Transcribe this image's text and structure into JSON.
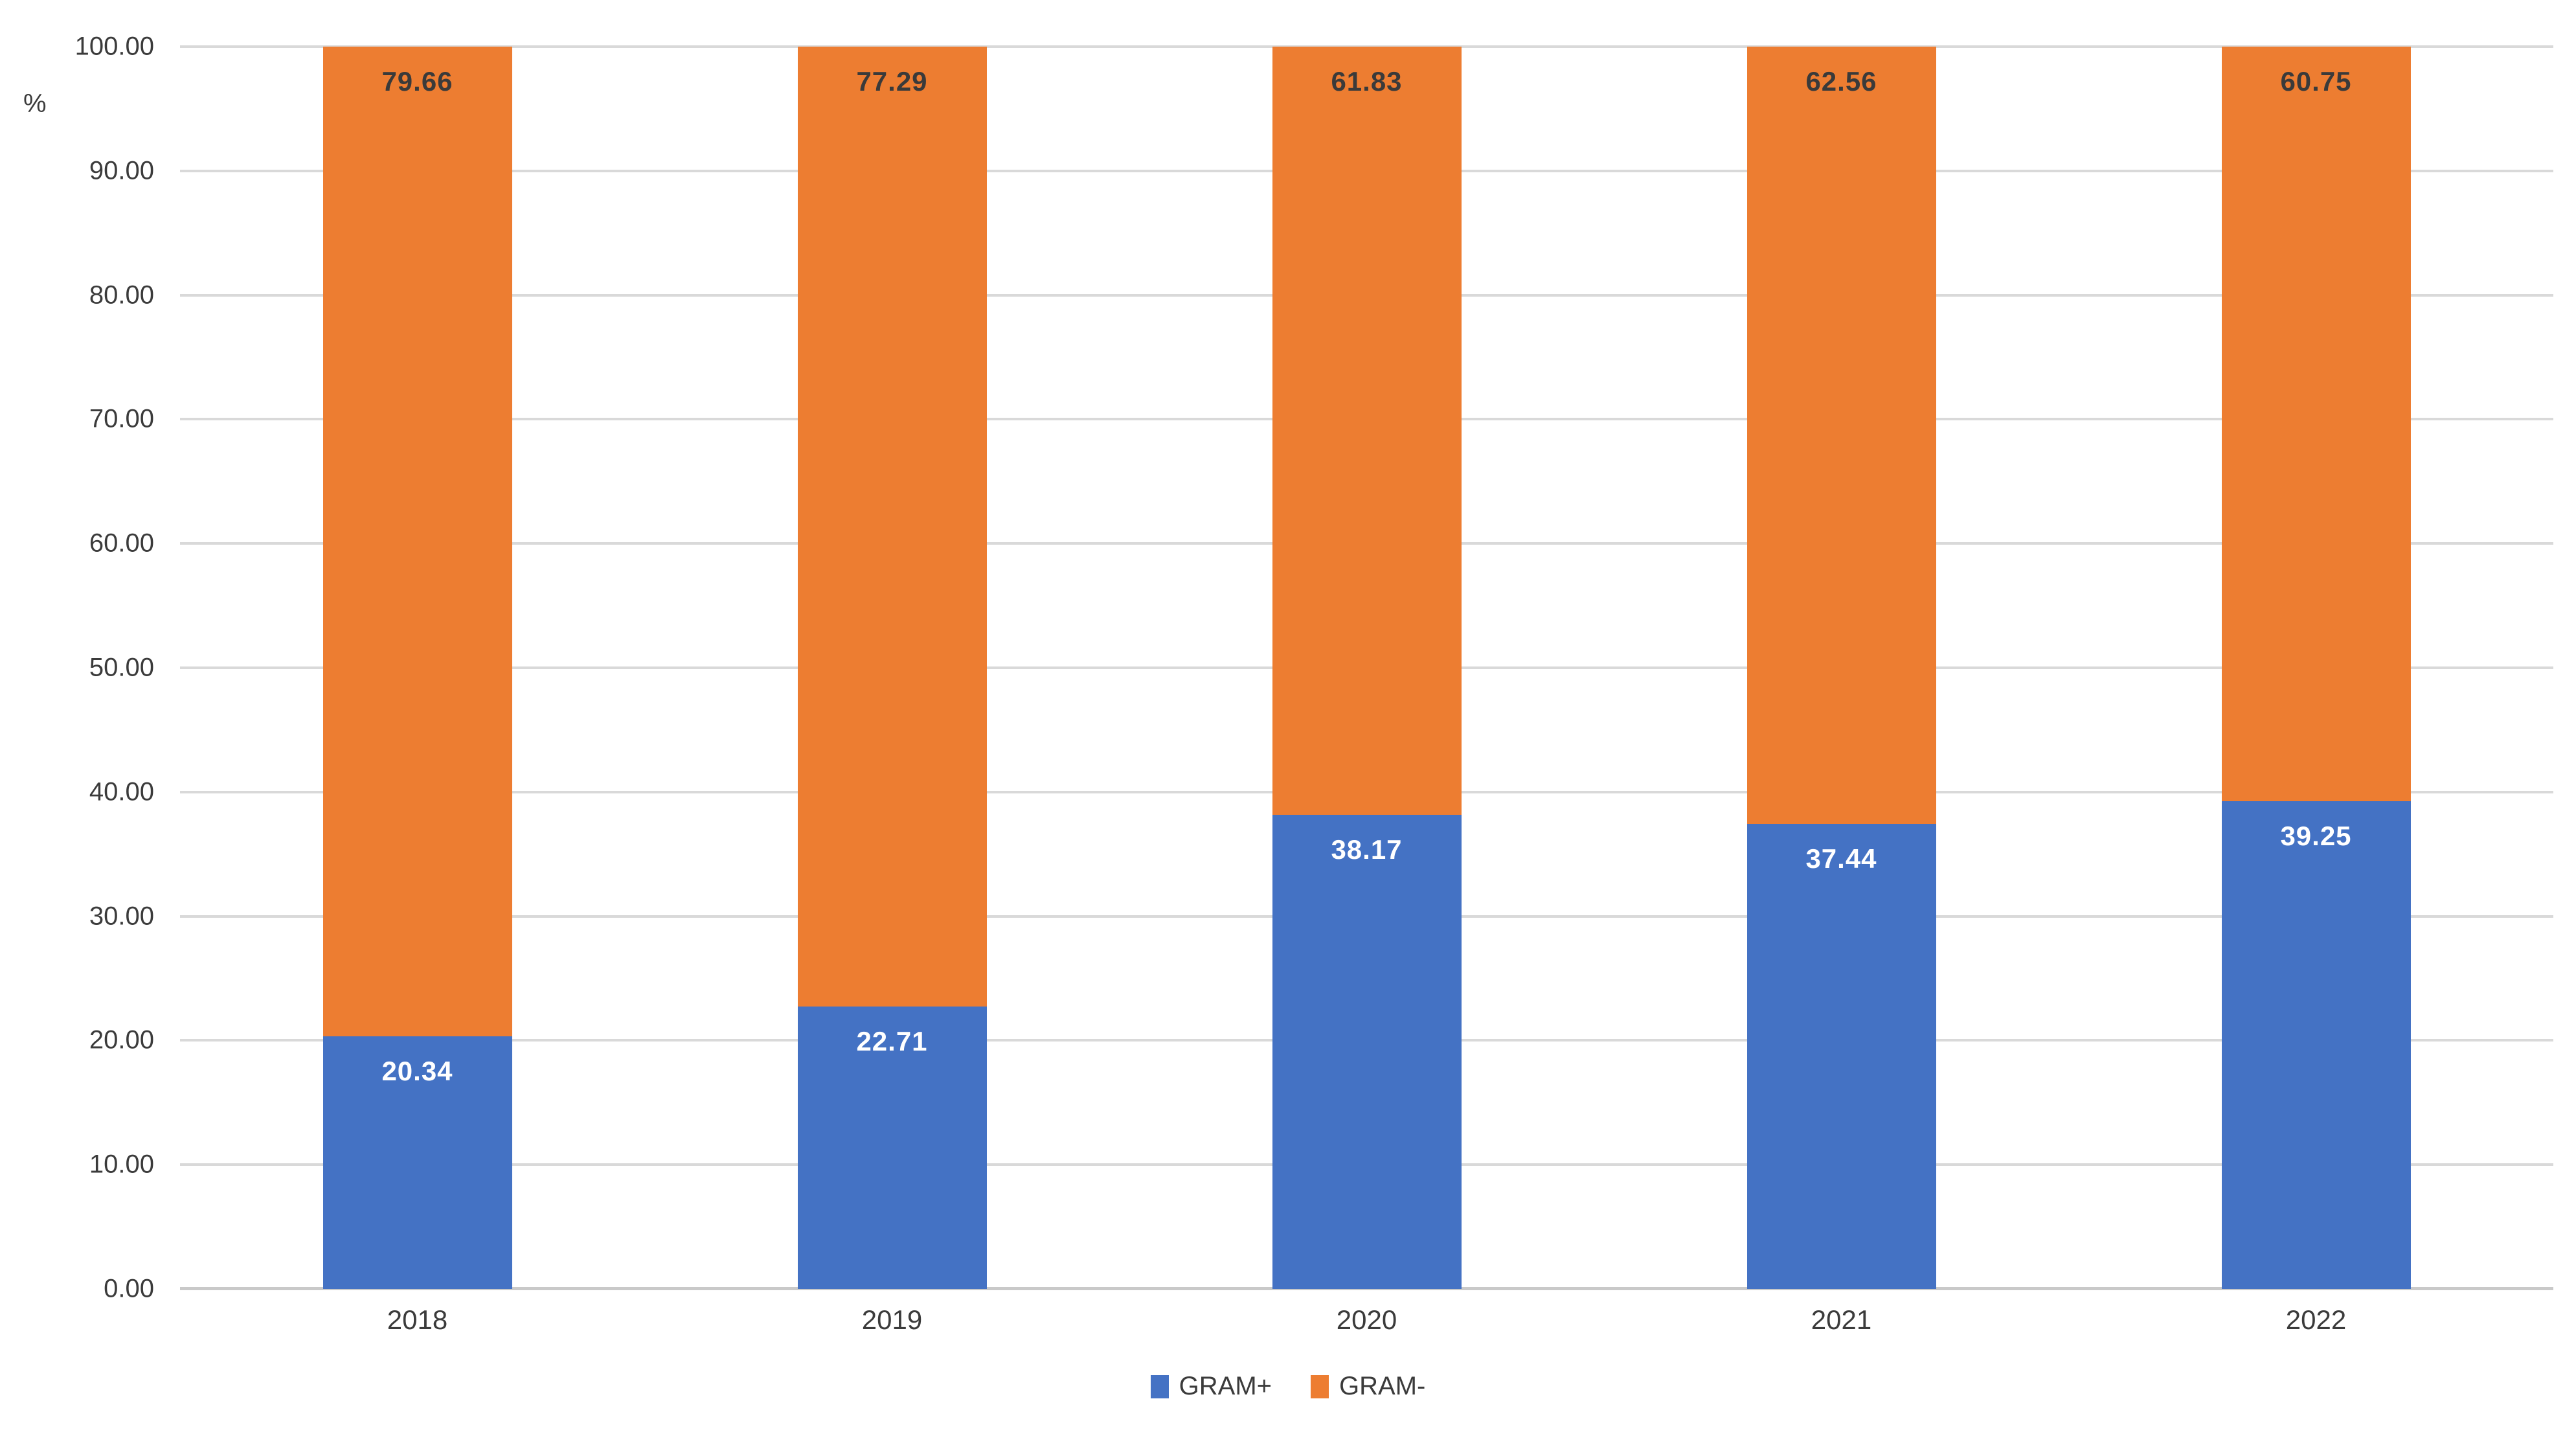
{
  "chart_data": {
    "type": "bar",
    "stacked": true,
    "title": "",
    "xlabel": "",
    "ylabel": "%",
    "ylim": [
      0,
      100
    ],
    "ytick_step": 10,
    "ytick_labels": [
      "100.00",
      "90.00",
      "80.00",
      "70.00",
      "60.00",
      "50.00",
      "40.00",
      "30.00",
      "20.00",
      "10.00",
      "0.00"
    ],
    "grid": true,
    "legend_position": "bottom-center",
    "value_label_position": "inside-end",
    "categories": [
      "2018",
      "2019",
      "2020",
      "2021",
      "2022"
    ],
    "series": [
      {
        "name": "GRAM+",
        "color": "#4472c4",
        "label_color": "#ffffff",
        "values": [
          20.34,
          22.71,
          38.17,
          37.44,
          39.25
        ],
        "value_labels": [
          "20.34",
          "22.71",
          "38.17",
          "37.44",
          "39.25"
        ]
      },
      {
        "name": "GRAM-",
        "color": "#ed7d31",
        "label_color": "#3a3a3a",
        "values": [
          79.66,
          77.29,
          61.83,
          62.56,
          60.75
        ],
        "value_labels": [
          "79.66",
          "77.29",
          "61.83",
          "62.56",
          "60.75"
        ]
      }
    ]
  },
  "colors": {
    "background": "#ffffff",
    "gridline": "#d9d9d9",
    "axis_line": "#c9c9c9",
    "axis_text": "#3b3b3b"
  }
}
